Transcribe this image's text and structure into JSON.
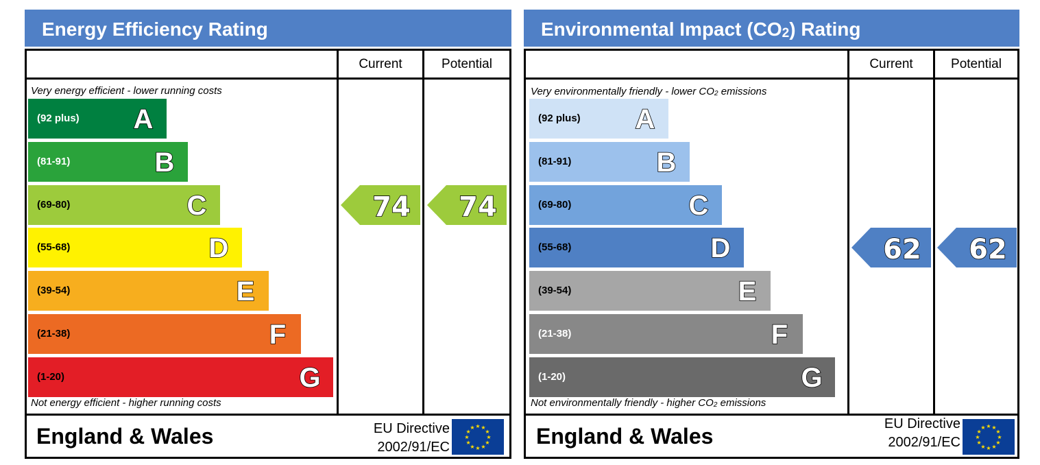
{
  "panels": [
    {
      "title": "Energy Efficiency Rating",
      "columns": {
        "current": "Current",
        "potential": "Potential"
      },
      "top_caption": "Very energy efficient - lower running costs",
      "bottom_caption": "Not energy efficient - higher running costs",
      "footer": {
        "country": "England & Wales",
        "directive_line1": "EU Directive",
        "directive_line2": "2002/91/EC"
      }
    },
    {
      "title": "Environmental Impact (CO2) Rating",
      "columns": {
        "current": "Current",
        "potential": "Potential"
      },
      "top_caption": "Very environmentally friendly - lower CO2 emissions",
      "bottom_caption": "Not environmentally friendly - higher CO2 emissions",
      "footer": {
        "country": "England & Wales",
        "directive_line1": "EU Directive",
        "directive_line2": "2002/91/EC"
      }
    }
  ],
  "chart_data": [
    {
      "type": "bar",
      "title": "Energy Efficiency Rating",
      "categories": [
        "A",
        "B",
        "C",
        "D",
        "E",
        "F",
        "G"
      ],
      "ranges": [
        "(92 plus)",
        "(81-91)",
        "(69-80)",
        "(55-68)",
        "(39-54)",
        "(21-38)",
        "(1-20)"
      ],
      "colors": [
        "#008040",
        "#2aa33b",
        "#9dcb3c",
        "#fff200",
        "#f7ae1e",
        "#ec6a23",
        "#e31e26"
      ],
      "range_text_colors": [
        "#ffffff",
        "#ffffff",
        "#000000",
        "#000000",
        "#000000",
        "#000000",
        "#000000"
      ],
      "current": {
        "value": 74,
        "band": "C",
        "color": "#9dcb3c"
      },
      "potential": {
        "value": 74,
        "band": "C",
        "color": "#9dcb3c"
      }
    },
    {
      "type": "bar",
      "title": "Environmental Impact (CO2) Rating",
      "categories": [
        "A",
        "B",
        "C",
        "D",
        "E",
        "F",
        "G"
      ],
      "ranges": [
        "(92 plus)",
        "(81-91)",
        "(69-80)",
        "(55-68)",
        "(39-54)",
        "(21-38)",
        "(1-20)"
      ],
      "colors": [
        "#cfe2f6",
        "#9cc1ec",
        "#72a3dc",
        "#4f80c4",
        "#a6a6a6",
        "#888888",
        "#6a6a6a"
      ],
      "range_text_colors": [
        "#000000",
        "#000000",
        "#000000",
        "#000000",
        "#000000",
        "#ffffff",
        "#ffffff"
      ],
      "current": {
        "value": 62,
        "band": "D",
        "color": "#4f80c4"
      },
      "potential": {
        "value": 62,
        "band": "D",
        "color": "#4f80c4"
      }
    }
  ]
}
